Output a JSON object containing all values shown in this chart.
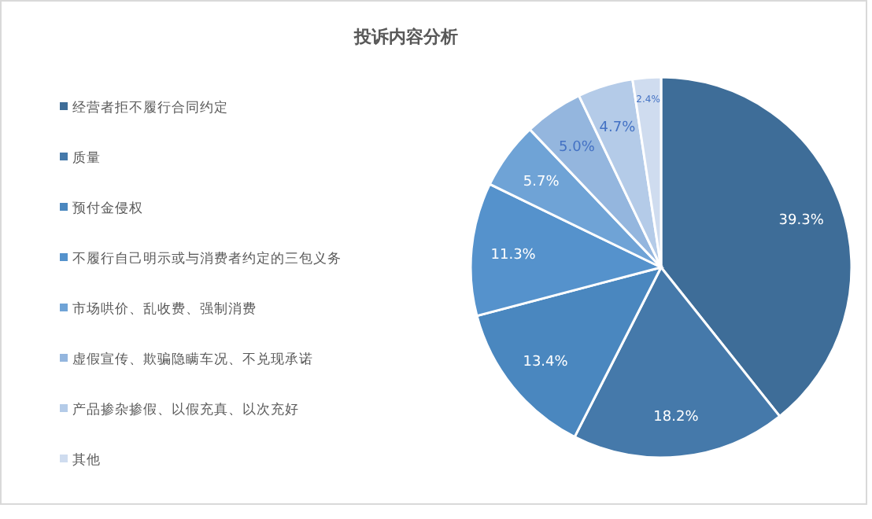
{
  "chart_data": {
    "type": "pie",
    "title": "投诉内容分析",
    "categories": [
      "经营者拒不履行合同约定",
      "质量",
      "预付金侵权",
      "不履行自己明示或与消费者约定的三包义务",
      "市场哄价、乱收费、强制消费",
      "虚假宣传、欺骗隐瞒车况、不兑现承诺",
      "产品掺杂掺假、以假充真、以次充好",
      "其他"
    ],
    "values": [
      39.3,
      18.2,
      13.4,
      11.3,
      5.7,
      5.0,
      4.7,
      2.4
    ],
    "value_labels": [
      "39.3%",
      "18.2%",
      "13.4%",
      "11.3%",
      "5.7%",
      "5.0%",
      "4.7%",
      "2.4%"
    ],
    "colors": [
      "#3e6d98",
      "#4579aa",
      "#4a87bf",
      "#5592cc",
      "#6fa3d6",
      "#94b6de",
      "#b4cbe8",
      "#cfdcef"
    ],
    "legend": "left"
  }
}
